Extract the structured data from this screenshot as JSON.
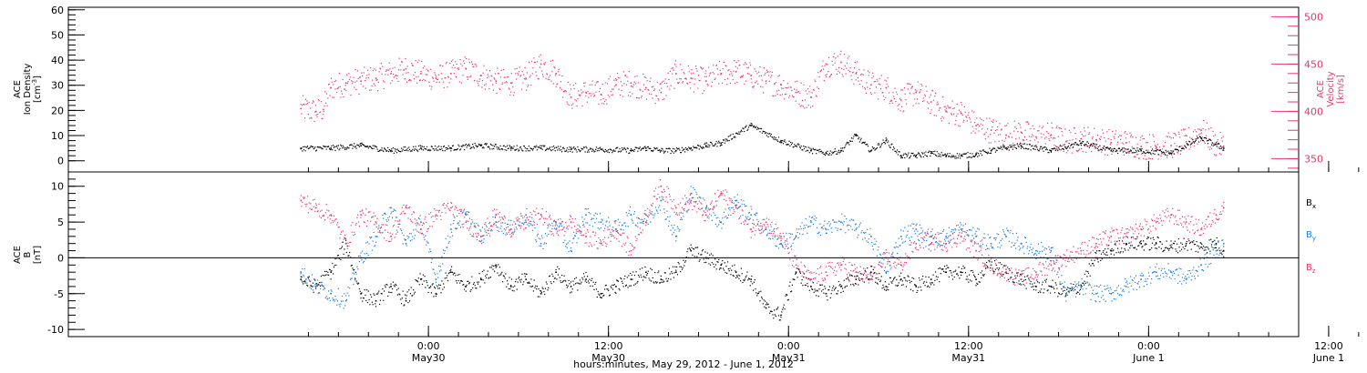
{
  "chart_data": [
    {
      "type": "scatter",
      "panel": "top",
      "ylabel_left": [
        "ACE",
        "Ion Density",
        "[cm^-3]"
      ],
      "ylabel_right": [
        "ACE",
        "Velocity",
        "[km/s]"
      ],
      "ylim_left": [
        -3,
        61
      ],
      "yticks_left": [
        "0",
        "10",
        "20",
        "30",
        "40",
        "50",
        "60"
      ],
      "ylim_right": [
        336,
        510
      ],
      "yticks_right": [
        "350",
        "400",
        "450",
        "500"
      ],
      "series": [
        {
          "name": "Ion Density",
          "color": "#000000",
          "axis": "left",
          "x": [
            0,
            2,
            4,
            6,
            8,
            10,
            12,
            14,
            16,
            18,
            20,
            22,
            23,
            24,
            25,
            26,
            27,
            28,
            30,
            32,
            34,
            35,
            36,
            37,
            38,
            39,
            40,
            41,
            42,
            43,
            44,
            45,
            46,
            47,
            48,
            50,
            52,
            54,
            56,
            58,
            60,
            61.5
          ],
          "y": [
            5,
            5,
            6,
            4,
            5,
            5,
            6,
            5,
            5,
            4.5,
            4.5,
            4,
            5,
            4,
            4,
            5,
            6,
            7,
            14,
            8,
            4,
            3,
            4,
            10,
            4,
            8,
            2,
            2,
            3,
            2,
            2,
            2.5,
            4,
            5,
            6,
            4,
            7,
            4,
            4,
            3,
            9,
            5
          ]
        },
        {
          "name": "Velocity",
          "color": "#e8386a",
          "axis": "right",
          "x": [
            0,
            1,
            1.5,
            2,
            3,
            4,
            5,
            6,
            7,
            8,
            9,
            10,
            11,
            12,
            13,
            14,
            15,
            16,
            17,
            18,
            19,
            20,
            21,
            22,
            23,
            24,
            25,
            26,
            27,
            28,
            29,
            30,
            31,
            32,
            33,
            34,
            35,
            36,
            37,
            38,
            39,
            40,
            41,
            42,
            43,
            44,
            45,
            46,
            47,
            48,
            49,
            50,
            51,
            52,
            53,
            54,
            55,
            56,
            57,
            58,
            59,
            60,
            61,
            61.5
          ],
          "y": [
            403,
            400,
            402,
            425,
            430,
            432,
            435,
            440,
            445,
            440,
            435,
            440,
            445,
            438,
            432,
            430,
            435,
            450,
            440,
            415,
            420,
            418,
            428,
            430,
            425,
            420,
            440,
            435,
            432,
            440,
            442,
            438,
            432,
            428,
            420,
            415,
            450,
            452,
            440,
            428,
            425,
            412,
            420,
            410,
            400,
            398,
            385,
            380,
            375,
            378,
            373,
            375,
            368,
            371,
            370,
            367,
            367,
            363,
            363,
            364,
            368,
            380,
            365,
            363
          ]
        }
      ]
    },
    {
      "type": "scatter",
      "panel": "bottom",
      "ylabel": [
        "ACE",
        "B",
        "[nT]"
      ],
      "ylim": [
        -11,
        12
      ],
      "yticks": [
        "-10",
        "-5",
        "0",
        "5",
        "10"
      ],
      "xticks": [
        {
          "time": "0:00",
          "date": "May30"
        },
        {
          "time": "12:00",
          "date": "May30"
        },
        {
          "time": "0:00",
          "date": "May31"
        },
        {
          "time": "12:00",
          "date": "May31"
        },
        {
          "time": "0:00",
          "date": "June 1"
        },
        {
          "time": "12:00",
          "date": "June 1"
        }
      ],
      "xlabel": "hours:minutes, May 29, 2012 - June  1, 2012",
      "legend_position": "right",
      "series": [
        {
          "name": "Bx",
          "color": "#000000",
          "x": [
            0,
            1,
            2,
            3,
            4,
            5,
            6,
            7,
            8,
            9,
            10,
            11,
            12,
            13,
            14,
            15,
            16,
            17,
            18,
            19,
            20,
            21,
            22,
            23,
            24,
            25,
            26,
            27,
            28,
            29,
            30,
            31,
            32,
            33,
            34,
            35,
            36,
            37,
            38,
            39,
            40,
            41,
            42,
            43,
            44,
            45,
            46,
            47,
            48,
            49,
            50,
            51,
            52,
            53,
            54,
            55,
            56,
            57,
            58,
            59,
            60,
            61,
            61.5
          ],
          "y": [
            -3,
            -4,
            -2,
            2,
            -5,
            -6,
            -4,
            -6,
            -3,
            -5,
            -2,
            -4,
            -3,
            -1,
            -4,
            -3,
            -5,
            -2,
            -4,
            -3,
            -5,
            -4,
            -3,
            -2,
            -3,
            -2,
            1,
            0,
            -1,
            -2,
            -3,
            -7,
            -8,
            -2,
            -4,
            -5,
            -4,
            -3,
            -2,
            -4,
            -3,
            -4,
            -3,
            -2,
            -2,
            -3,
            -1,
            -2,
            -3,
            -4,
            -4,
            -5,
            -4,
            0,
            1,
            2,
            2,
            2,
            1.5,
            2,
            1.5,
            2,
            1
          ]
        },
        {
          "name": "By",
          "color": "#1e7be0",
          "x": [
            0,
            1,
            2,
            3,
            4,
            5,
            6,
            7,
            8,
            9,
            10,
            11,
            12,
            13,
            14,
            15,
            16,
            17,
            18,
            19,
            20,
            21,
            22,
            23,
            24,
            25,
            26,
            27,
            28,
            29,
            30,
            31,
            32,
            33,
            34,
            35,
            36,
            37,
            38,
            39,
            40,
            41,
            42,
            43,
            44,
            45,
            46,
            47,
            48,
            49,
            50,
            51,
            52,
            53,
            54,
            55,
            56,
            57,
            58,
            59,
            60,
            61,
            61.5
          ],
          "y": [
            -2,
            -4,
            -5,
            -6,
            0,
            3,
            7,
            2,
            5,
            -3,
            4,
            6,
            3,
            5,
            4,
            6,
            2,
            5,
            1,
            6,
            5,
            4,
            6,
            5,
            8,
            3,
            9,
            7,
            5,
            8,
            6,
            4,
            2,
            3,
            5,
            4,
            5,
            4,
            3,
            -2,
            3,
            4,
            2,
            3,
            4,
            3,
            2,
            3,
            2,
            1,
            1,
            -5,
            -4,
            -5,
            -5,
            -4,
            -3,
            -2,
            -2,
            -3,
            -1,
            1,
            2
          ]
        },
        {
          "name": "Bz",
          "color": "#e8386a",
          "x": [
            0,
            1,
            2,
            3,
            4,
            5,
            6,
            7,
            8,
            9,
            10,
            11,
            12,
            13,
            14,
            15,
            16,
            17,
            18,
            19,
            20,
            21,
            22,
            23,
            24,
            25,
            26,
            27,
            28,
            29,
            30,
            31,
            32,
            33,
            34,
            35,
            36,
            37,
            38,
            39,
            40,
            41,
            42,
            43,
            44,
            45,
            46,
            47,
            48,
            49,
            50,
            51,
            52,
            53,
            54,
            55,
            56,
            57,
            58,
            59,
            60,
            61,
            61.5
          ],
          "y": [
            8,
            7,
            6,
            2,
            6,
            5,
            3,
            7,
            4,
            6,
            7,
            5,
            3,
            6,
            4,
            5,
            6,
            4,
            5,
            3,
            2,
            4,
            1,
            6,
            10,
            7,
            8,
            6,
            9,
            7,
            4,
            5,
            3,
            -1,
            -3,
            -2,
            -1,
            -2,
            -3,
            0,
            -1,
            2,
            3,
            2,
            3,
            1,
            -1,
            -2,
            -3,
            -2,
            -1,
            0,
            1,
            2,
            3,
            3,
            4,
            5,
            6,
            5,
            4,
            6,
            7
          ]
        }
      ]
    }
  ]
}
